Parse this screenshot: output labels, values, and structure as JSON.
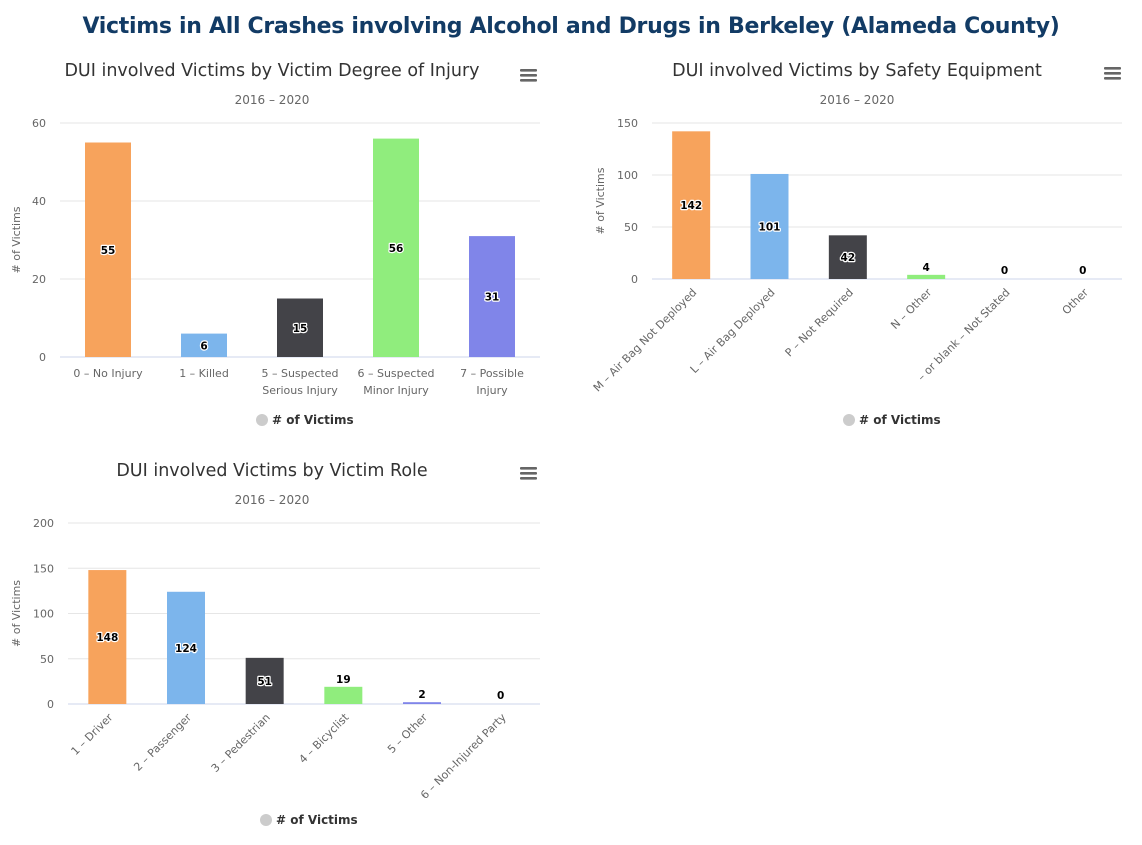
{
  "page_title": "Victims in All Crashes involving Alcohol and Drugs in Berkeley (Alameda County)",
  "colors": {
    "grid": "#e6e6e6",
    "axis": "#ccd6eb",
    "legend_marker": "#cccccc",
    "menu_icon": "#666666",
    "title": "#123b65"
  },
  "chart_data": [
    {
      "type": "bar",
      "title": "DUI involved Victims by Victim Degree of Injury",
      "subtitle": "2016 – 2020",
      "ylabel": "# of Victims",
      "xlabel": "",
      "categories": [
        "0 – No Injury",
        "1 – Killed",
        "5 – Suspected Serious Injury",
        "6 – Suspected Minor Injury",
        "7 – Possible Injury"
      ],
      "values": [
        55,
        6,
        15,
        56,
        31
      ],
      "colors": [
        "#f7a35c",
        "#7cb5ec",
        "#434348",
        "#90ed7d",
        "#8085e9"
      ],
      "ylim": [
        0,
        60
      ],
      "yticks": [
        0,
        20,
        40,
        60
      ],
      "label_style": "wrap",
      "legend": {
        "label": "# of Victims",
        "position": "bottom-center"
      },
      "grid": true,
      "menu_icon": "hamburger-menu-icon"
    },
    {
      "type": "bar",
      "title": "DUI involved Victims by Safety Equipment",
      "subtitle": "2016 – 2020",
      "ylabel": "# of Victims",
      "xlabel": "",
      "categories": [
        "M – Air Bag Not Deployed",
        "L – Air Bag Deployed",
        "P – Not Required",
        "N – Other",
        "– or blank – Not Stated",
        "Other"
      ],
      "values": [
        142,
        101,
        42,
        4,
        0,
        0
      ],
      "colors": [
        "#f7a35c",
        "#7cb5ec",
        "#434348",
        "#90ed7d",
        "#8085e9",
        "#f15c80"
      ],
      "ylim": [
        0,
        150
      ],
      "yticks": [
        0,
        50,
        100,
        150
      ],
      "label_style": "rotate",
      "legend": {
        "label": "# of Victims",
        "position": "bottom-center"
      },
      "grid": true,
      "menu_icon": "hamburger-menu-icon"
    },
    {
      "type": "bar",
      "title": "DUI involved Victims by Victim Role",
      "subtitle": "2016 – 2020",
      "ylabel": "# of Victims",
      "xlabel": "",
      "categories": [
        "1 – Driver",
        "2 – Passenger",
        "3 – Pedestrian",
        "4 – Bicyclist",
        "5 – Other",
        "6 – Non-Injured Party"
      ],
      "values": [
        148,
        124,
        51,
        19,
        2,
        0
      ],
      "colors": [
        "#f7a35c",
        "#7cb5ec",
        "#434348",
        "#90ed7d",
        "#8085e9",
        "#f15c80"
      ],
      "ylim": [
        0,
        200
      ],
      "yticks": [
        0,
        50,
        100,
        150,
        200
      ],
      "label_style": "rotate",
      "legend": {
        "label": "# of Victims",
        "position": "bottom-center"
      },
      "grid": true,
      "menu_icon": "hamburger-menu-icon"
    }
  ]
}
